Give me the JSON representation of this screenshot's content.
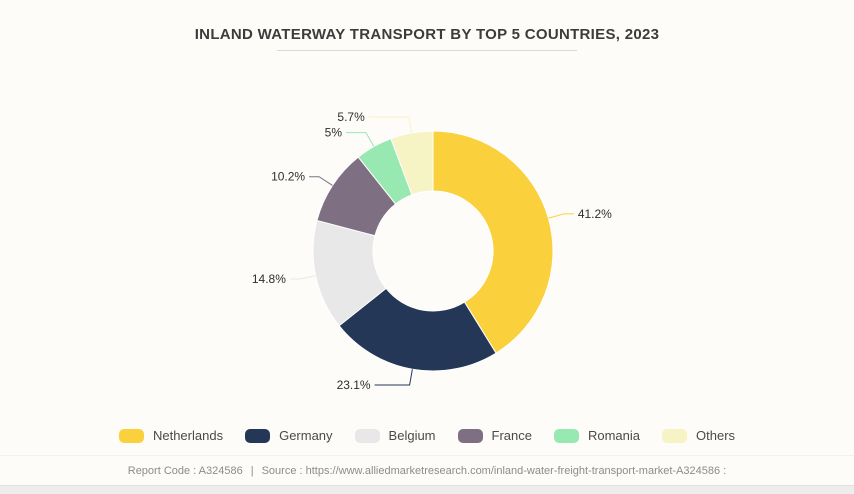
{
  "page": {
    "background": "#FEFCF9"
  },
  "chart_data": {
    "type": "pie",
    "subtype": "donut",
    "title": "INLAND WATERWAY TRANSPORT BY TOP 5 COUNTRIES, 2023",
    "unit": "%",
    "categories": [
      "Netherlands",
      "Germany",
      "Belgium",
      "France",
      "Romania",
      "Others"
    ],
    "values": [
      41.2,
      23.1,
      14.8,
      10.2,
      5,
      5.7
    ],
    "labels": [
      "41.2%",
      "23.1%",
      "14.8%",
      "10.2%",
      "5%",
      "5.7%"
    ],
    "colors": [
      "#FBD03D",
      "#243757",
      "#E8E8E8",
      "#7E6F82",
      "#98E8B1",
      "#F6F4C4"
    ],
    "start_angle_deg": 0,
    "direction": "clockwise",
    "inner_radius_ratio": 0.5,
    "legend_position": "bottom",
    "label_text_color": "#2E2E2E"
  },
  "footer": {
    "report_code_label": "Report Code : A324586",
    "separator": "|",
    "source_label": "Source : https://www.alliedmarketresearch.com/inland-water-freight-transport-market-A324586 :"
  }
}
